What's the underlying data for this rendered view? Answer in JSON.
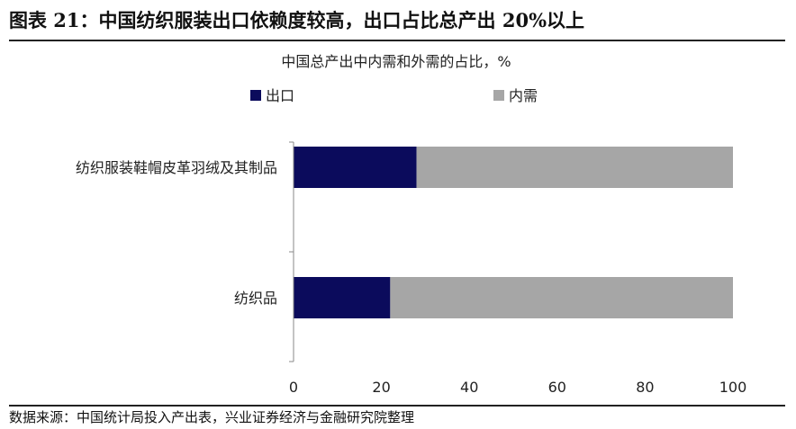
{
  "figure_title": "图表 21：中国纺织服装出口依赖度较高，出口占比总产出 20%以上",
  "source_note": "数据来源：中国统计局投入产出表，兴业证券经济与金融研究院整理",
  "colors": {
    "export": "#0b0b5c",
    "domestic": "#a6a6a6",
    "axis": "#888888"
  },
  "chart_data": {
    "type": "bar",
    "orientation": "horizontal",
    "stacked": true,
    "title": "中国总产出中内需和外需的占比，%",
    "categories": [
      "纺织服装鞋帽皮革羽绒及其制品",
      "纺织品"
    ],
    "series": [
      {
        "name": "出口",
        "values": [
          28,
          22
        ]
      },
      {
        "name": "内需",
        "values": [
          72,
          78
        ]
      }
    ],
    "xlim": [
      0,
      100
    ],
    "xticks": [
      0,
      20,
      40,
      60,
      80,
      100
    ],
    "xlabel": "",
    "ylabel": "",
    "legend_position": "top",
    "grid": false
  }
}
